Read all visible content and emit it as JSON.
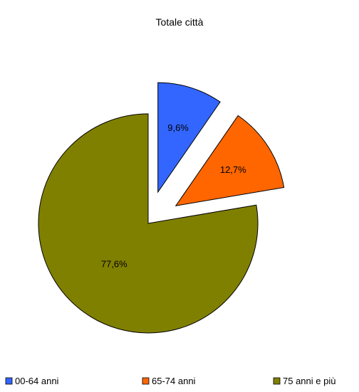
{
  "chart_data": {
    "type": "pie",
    "title": "Totale città",
    "categories": [
      "00-64 anni",
      "65-74 anni",
      "75 anni e più"
    ],
    "values": [
      9.6,
      12.7,
      77.6
    ],
    "labels": [
      "9,6%",
      "12,7%",
      "77,6%"
    ],
    "colors": [
      "#3366ff",
      "#ff6600",
      "#808000"
    ],
    "exploded": [
      true,
      true,
      false
    ],
    "legend_position": "bottom"
  }
}
